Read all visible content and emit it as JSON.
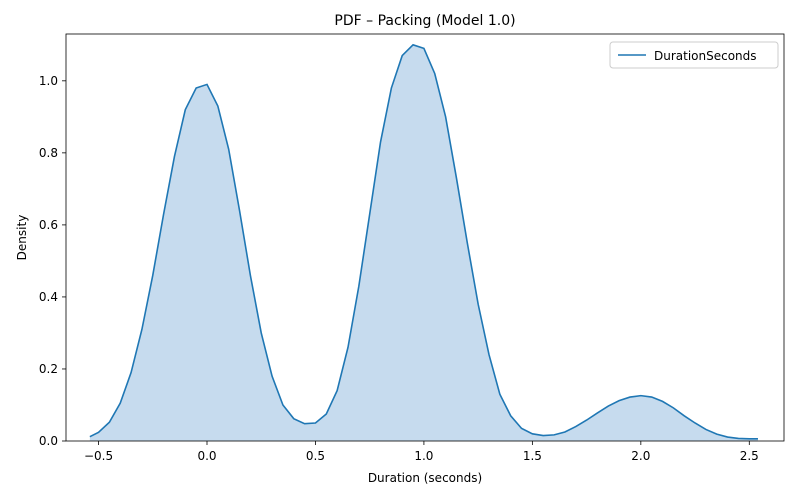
{
  "chart_data": {
    "type": "area",
    "title": "PDF – Packing (Model 1.0)",
    "xlabel": "Duration (seconds)",
    "ylabel": "Density",
    "xlim": [
      -0.65,
      2.66
    ],
    "ylim": [
      0.0,
      1.13
    ],
    "xticks": [
      -0.5,
      0.0,
      0.5,
      1.0,
      1.5,
      2.0,
      2.5
    ],
    "xtick_labels": [
      "−0.5",
      "0.0",
      "0.5",
      "1.0",
      "1.5",
      "2.0",
      "2.5"
    ],
    "yticks": [
      0.0,
      0.2,
      0.4,
      0.6,
      0.8,
      1.0
    ],
    "ytick_labels": [
      "0.0",
      "0.2",
      "0.4",
      "0.6",
      "0.8",
      "1.0"
    ],
    "grid": false,
    "legend_position": "top-right",
    "series": [
      {
        "name": "DurationSeconds",
        "color": "#1f77b4",
        "fill_color": "#c6dbee",
        "x": [
          -0.54,
          -0.5,
          -0.45,
          -0.4,
          -0.35,
          -0.3,
          -0.25,
          -0.2,
          -0.15,
          -0.1,
          -0.05,
          0.0,
          0.05,
          0.1,
          0.15,
          0.2,
          0.25,
          0.3,
          0.35,
          0.4,
          0.45,
          0.5,
          0.55,
          0.6,
          0.65,
          0.7,
          0.75,
          0.8,
          0.85,
          0.9,
          0.95,
          1.0,
          1.05,
          1.1,
          1.15,
          1.2,
          1.25,
          1.3,
          1.35,
          1.4,
          1.45,
          1.5,
          1.55,
          1.6,
          1.65,
          1.7,
          1.75,
          1.8,
          1.85,
          1.9,
          1.95,
          2.0,
          2.05,
          2.1,
          2.15,
          2.2,
          2.25,
          2.3,
          2.35,
          2.4,
          2.45,
          2.5,
          2.54
        ],
        "y": [
          0.012,
          0.024,
          0.052,
          0.105,
          0.19,
          0.31,
          0.46,
          0.63,
          0.79,
          0.92,
          0.98,
          0.99,
          0.93,
          0.81,
          0.64,
          0.46,
          0.3,
          0.18,
          0.1,
          0.062,
          0.048,
          0.05,
          0.075,
          0.14,
          0.26,
          0.43,
          0.63,
          0.83,
          0.98,
          1.07,
          1.1,
          1.09,
          1.02,
          0.9,
          0.73,
          0.55,
          0.38,
          0.24,
          0.13,
          0.07,
          0.035,
          0.02,
          0.015,
          0.017,
          0.025,
          0.04,
          0.058,
          0.078,
          0.097,
          0.112,
          0.122,
          0.126,
          0.122,
          0.11,
          0.092,
          0.07,
          0.05,
          0.032,
          0.019,
          0.011,
          0.007,
          0.006,
          0.006
        ]
      }
    ]
  }
}
